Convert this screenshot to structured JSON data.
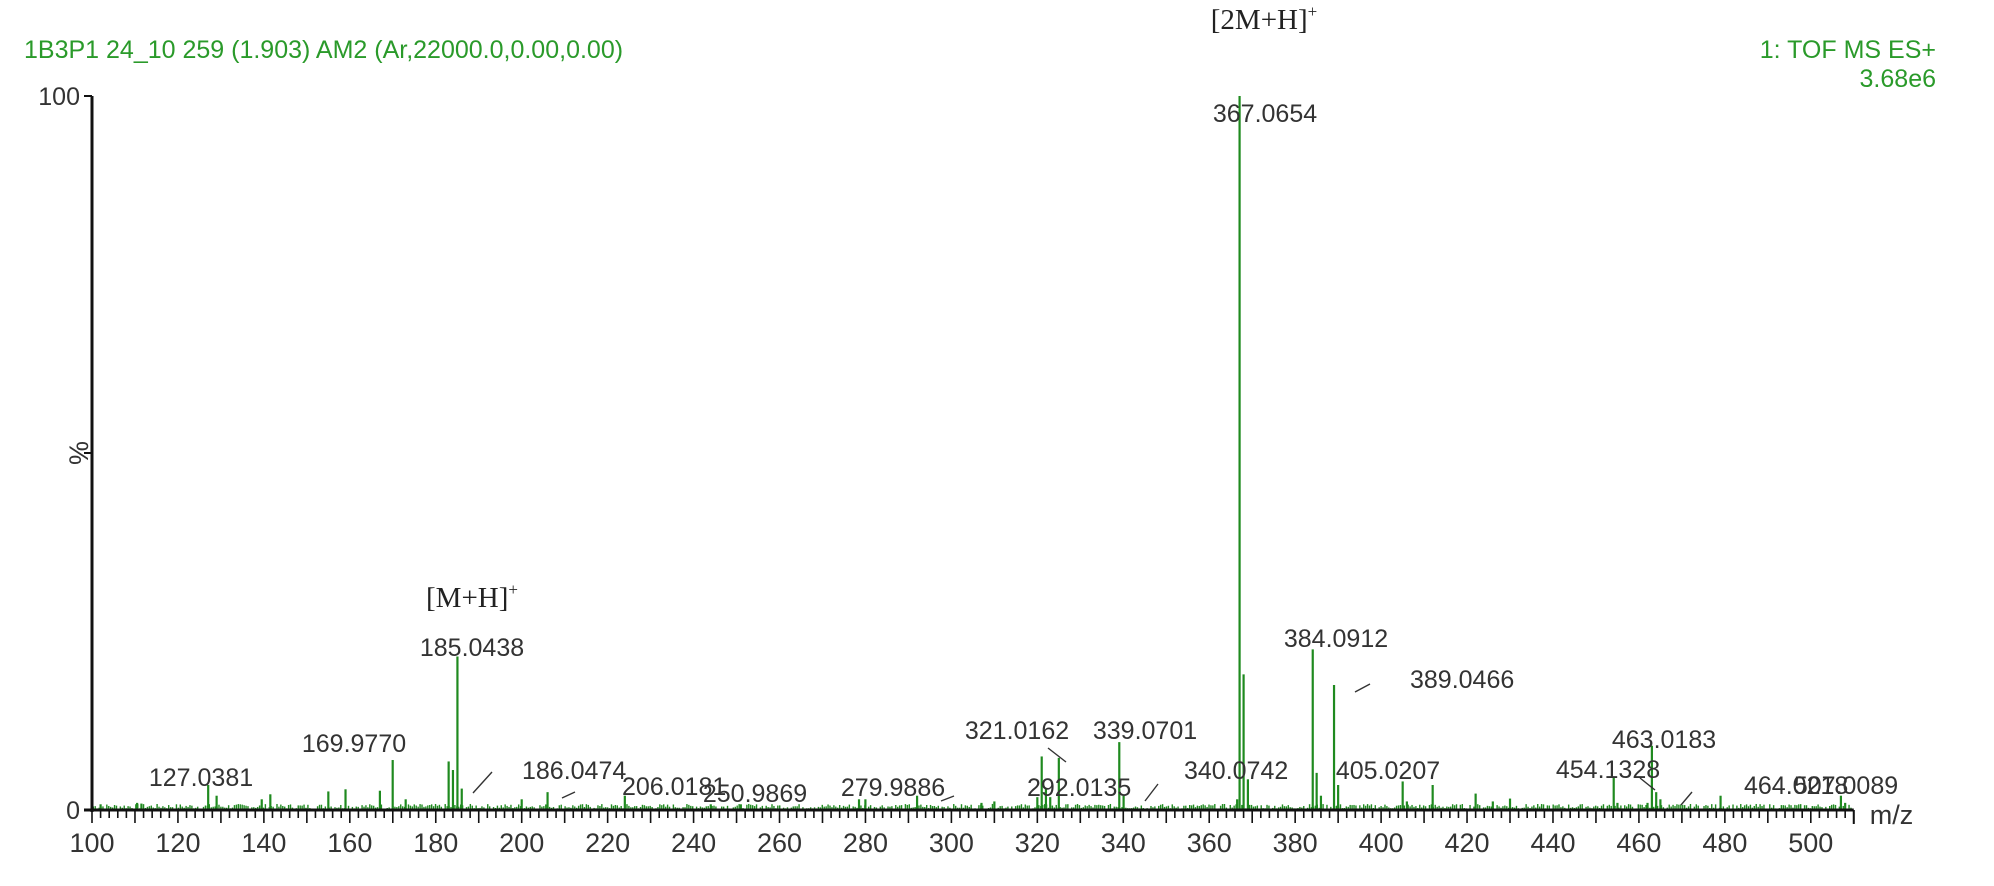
{
  "header": {
    "sample_info": "1B3P1 24_10 259 (1.903) AM2 (Ar,22000.0,0.00,0.00)",
    "function": "1: TOF MS ES+",
    "intensity_max": "3.68e6"
  },
  "annotations": [
    {
      "label": "[M+H]",
      "sup": "+",
      "mz": 185.0438
    },
    {
      "label": "[2M+H]",
      "sup": "+",
      "mz": 367.0654
    }
  ],
  "colors": {
    "peak": "#1f8a1f",
    "header": "#2a9a2a",
    "axis": "#111111",
    "label": "#333333"
  },
  "chart_data": {
    "type": "bar",
    "title": "1B3P1 24_10 259 (1.903) AM2 (Ar,22000.0,0.00,0.00)",
    "subtitle": "1: TOF MS ES+ 3.68e6",
    "xlabel": "m/z",
    "ylabel": "%",
    "xlim": [
      100,
      510
    ],
    "ylim": [
      0,
      100
    ],
    "x_ticks": [
      100,
      120,
      140,
      160,
      180,
      200,
      220,
      240,
      260,
      280,
      300,
      320,
      340,
      360,
      380,
      400,
      420,
      440,
      460,
      480,
      500
    ],
    "y_ticks": [
      0,
      100
    ],
    "grid": false,
    "legend": "none",
    "labeled_peaks": [
      {
        "mz": 127.0381,
        "intensity": 3.5,
        "label": "127.0381"
      },
      {
        "mz": 169.977,
        "intensity": 7.0,
        "label": "169.9770"
      },
      {
        "mz": 185.0438,
        "intensity": 21.5,
        "label": "185.0438"
      },
      {
        "mz": 186.0474,
        "intensity": 3.0,
        "label": "186.0474"
      },
      {
        "mz": 206.0181,
        "intensity": 2.5,
        "label": "206.0181"
      },
      {
        "mz": 250.9869,
        "intensity": 0.8,
        "label": "250.9869"
      },
      {
        "mz": 279.9886,
        "intensity": 1.5,
        "label": "279.9886"
      },
      {
        "mz": 292.0135,
        "intensity": 2.0,
        "label": "292.0135"
      },
      {
        "mz": 321.0162,
        "intensity": 7.5,
        "label": "321.0162"
      },
      {
        "mz": 339.0701,
        "intensity": 9.5,
        "label": "339.0701"
      },
      {
        "mz": 340.0742,
        "intensity": 2.0,
        "label": "340.0742"
      },
      {
        "mz": 367.0654,
        "intensity": 100.0,
        "label": "367.0654"
      },
      {
        "mz": 384.0912,
        "intensity": 22.5,
        "label": "384.0912"
      },
      {
        "mz": 389.0466,
        "intensity": 17.5,
        "label": "389.0466"
      },
      {
        "mz": 405.0207,
        "intensity": 4.0,
        "label": "405.0207"
      },
      {
        "mz": 454.1328,
        "intensity": 4.5,
        "label": "454.1328"
      },
      {
        "mz": 463.0183,
        "intensity": 9.0,
        "label": "463.0183"
      },
      {
        "mz": 464.0218,
        "intensity": 2.5,
        "label": "464.0218"
      },
      {
        "mz": 507.0089,
        "intensity": 2.0,
        "label": "507.0089"
      }
    ],
    "other_peaks": [
      {
        "mz": 102.0,
        "intensity": 0.8
      },
      {
        "mz": 110.5,
        "intensity": 1.0
      },
      {
        "mz": 111.5,
        "intensity": 0.9
      },
      {
        "mz": 129.0,
        "intensity": 2.0
      },
      {
        "mz": 139.5,
        "intensity": 1.5
      },
      {
        "mz": 141.5,
        "intensity": 2.2
      },
      {
        "mz": 155.0,
        "intensity": 2.6
      },
      {
        "mz": 159.0,
        "intensity": 2.9
      },
      {
        "mz": 167.0,
        "intensity": 2.7
      },
      {
        "mz": 173.0,
        "intensity": 1.5
      },
      {
        "mz": 183.0,
        "intensity": 6.8
      },
      {
        "mz": 184.0,
        "intensity": 5.6
      },
      {
        "mz": 200.0,
        "intensity": 1.5
      },
      {
        "mz": 224.0,
        "intensity": 2.0
      },
      {
        "mz": 244.0,
        "intensity": 0.8
      },
      {
        "mz": 278.5,
        "intensity": 1.5
      },
      {
        "mz": 307.0,
        "intensity": 1.0
      },
      {
        "mz": 310.0,
        "intensity": 1.2
      },
      {
        "mz": 320.0,
        "intensity": 1.8
      },
      {
        "mz": 322.0,
        "intensity": 3.0
      },
      {
        "mz": 323.0,
        "intensity": 1.8
      },
      {
        "mz": 325.0,
        "intensity": 7.3
      },
      {
        "mz": 366.5,
        "intensity": 1.5
      },
      {
        "mz": 368.0,
        "intensity": 19.0
      },
      {
        "mz": 369.0,
        "intensity": 4.3
      },
      {
        "mz": 385.0,
        "intensity": 5.2
      },
      {
        "mz": 386.0,
        "intensity": 2.0
      },
      {
        "mz": 390.0,
        "intensity": 3.5
      },
      {
        "mz": 406.0,
        "intensity": 1.2
      },
      {
        "mz": 412.0,
        "intensity": 3.5
      },
      {
        "mz": 422.0,
        "intensity": 2.3
      },
      {
        "mz": 426.0,
        "intensity": 1.2
      },
      {
        "mz": 430.0,
        "intensity": 1.6
      },
      {
        "mz": 455.0,
        "intensity": 1.0
      },
      {
        "mz": 462.0,
        "intensity": 1.0
      },
      {
        "mz": 465.0,
        "intensity": 1.5
      },
      {
        "mz": 479.0,
        "intensity": 2.0
      },
      {
        "mz": 508.0,
        "intensity": 1.0
      }
    ]
  }
}
